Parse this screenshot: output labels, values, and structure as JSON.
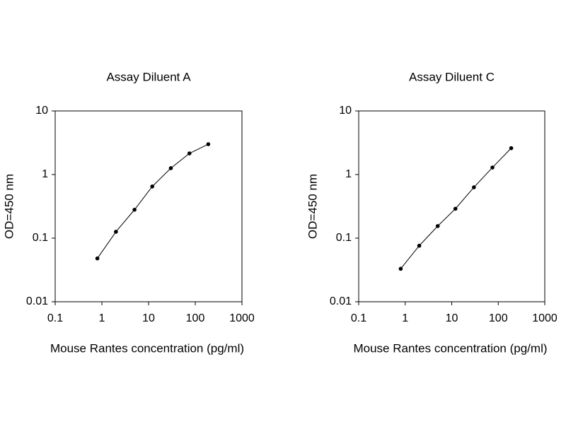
{
  "chart_data": [
    {
      "type": "line",
      "title": "Assay Diluent A",
      "xlabel": "Mouse Rantes concentration (pg/ml)",
      "ylabel": "OD=450 nm",
      "x": [
        0.8,
        2,
        5,
        12,
        30,
        75,
        190
      ],
      "values": [
        0.048,
        0.126,
        0.28,
        0.65,
        1.26,
        2.15,
        3.0
      ],
      "color": "#000000",
      "xscale": "log",
      "yscale": "log",
      "xlim": [
        0.1,
        1000
      ],
      "ylim": [
        0.01,
        10
      ],
      "xticks": [
        0.1,
        1,
        10,
        100,
        1000
      ],
      "yticks": [
        0.01,
        0.1,
        1,
        10
      ]
    },
    {
      "type": "line",
      "title": "Assay Diluent C",
      "xlabel": "Mouse Rantes concentration (pg/ml)",
      "ylabel": "OD=450 nm",
      "x": [
        0.8,
        2,
        5,
        12,
        30,
        75,
        190
      ],
      "values": [
        0.033,
        0.076,
        0.155,
        0.29,
        0.63,
        1.29,
        2.6
      ],
      "color": "#000000",
      "xscale": "log",
      "yscale": "log",
      "xlim": [
        0.1,
        1000
      ],
      "ylim": [
        0.01,
        10
      ],
      "xticks": [
        0.1,
        1,
        10,
        100,
        1000
      ],
      "yticks": [
        0.01,
        0.1,
        1,
        10
      ]
    }
  ]
}
